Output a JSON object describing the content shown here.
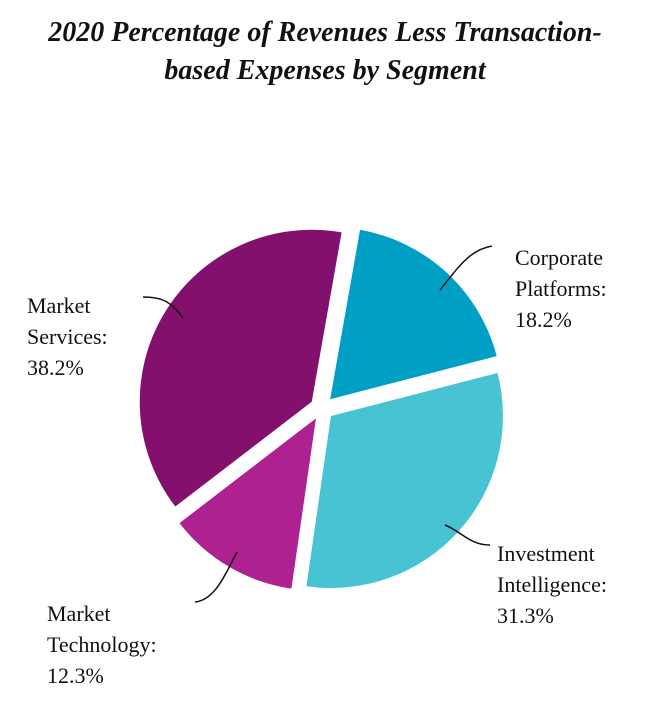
{
  "chart_data": {
    "type": "pie",
    "title": "2020 Percentage of Revenues Less Transaction-based Expenses by Segment",
    "categories": [
      "Corporate Platforms:",
      "Investment Intelligence:",
      "Market Technology:",
      "Market Services:"
    ],
    "values": [
      18.2,
      31.3,
      12.3,
      38.2
    ],
    "value_labels": [
      "18.2%",
      "31.3%",
      "12.3%",
      "38.2%"
    ],
    "colors": [
      "#00a0c6",
      "#48c3d4",
      "#ae2191",
      "#84106e"
    ]
  }
}
